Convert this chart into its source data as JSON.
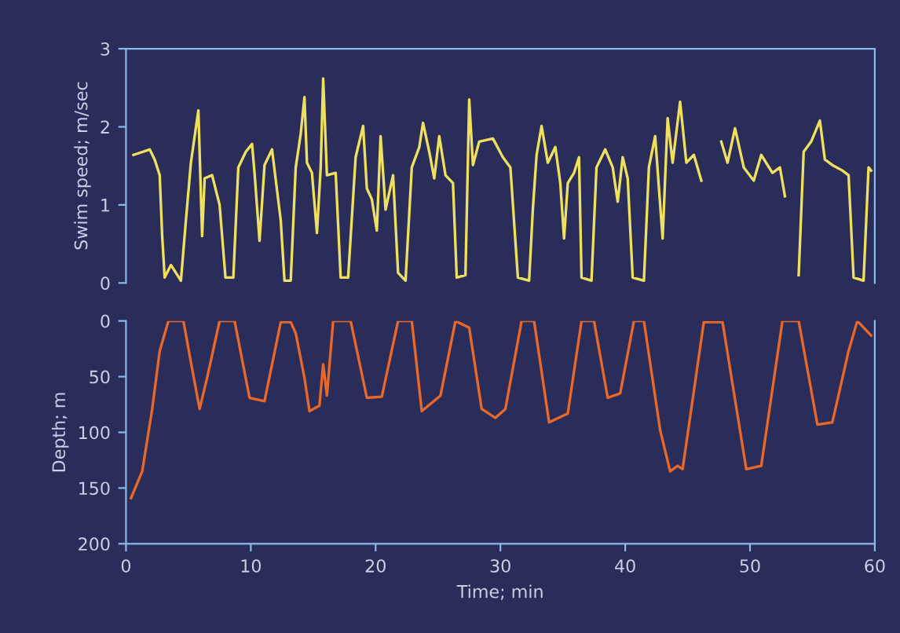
{
  "chart_data": [
    {
      "type": "line",
      "ylabel": "Swim speed; m/sec",
      "color": "#f0e060",
      "xlim": [
        0,
        60
      ],
      "ylim": [
        0,
        3
      ],
      "yticks": [
        0,
        1,
        2,
        3
      ],
      "tick_labels": "y",
      "x": [
        0.6,
        1.9,
        2.3,
        2.7,
        2.9,
        3.1,
        3.6,
        4.4,
        4.8,
        5.2,
        5.8,
        6.1,
        6.3,
        6.9,
        7.5,
        7.97,
        8.6,
        9.0,
        9.6,
        10.1,
        10.3,
        10.7,
        11.1,
        11.7,
        12.4,
        12.7,
        13.2,
        13.6,
        14.0,
        14.3,
        14.5,
        14.9,
        15.3,
        15.6,
        15.8,
        16.1,
        16.8,
        17.2,
        17.8,
        18.4,
        19.0,
        19.3,
        19.7,
        20.1,
        20.4,
        20.8,
        21.4,
        21.8,
        22.4,
        22.9,
        23.5,
        23.8,
        24.3,
        24.7,
        25.1,
        25.6,
        26.2,
        26.5,
        27.2,
        27.5,
        27.8,
        28.3,
        29.4,
        30.2,
        30.8,
        31.4,
        32.3,
        32.6,
        32.9,
        33.3,
        33.8,
        34.4,
        34.8,
        35.1,
        35.4,
        35.9,
        36.3,
        36.5,
        37.3,
        37.7,
        38.4,
        39.0,
        39.4,
        39.8,
        40.2,
        40.6,
        41.5,
        41.9,
        42.4,
        43.0,
        43.4,
        43.8,
        44.4,
        44.9,
        45.5,
        46.1,
        46.8,
        47.7,
        48.2,
        48.8,
        49.5,
        50.3,
        50.9,
        51.8,
        52.4,
        52.8,
        53.3,
        53.9,
        54.3,
        54.9,
        55.6,
        56.0,
        56.6,
        57.4,
        57.9,
        58.3,
        59.1,
        59.5,
        59.7
      ],
      "values": [
        1.64,
        1.71,
        1.58,
        1.38,
        0.6,
        0.07,
        0.23,
        0.03,
        0.8,
        1.54,
        2.21,
        0.6,
        1.34,
        1.38,
        1.0,
        0.07,
        0.07,
        1.48,
        1.68,
        1.78,
        1.41,
        0.54,
        1.51,
        1.71,
        0.8,
        0.03,
        0.03,
        1.48,
        1.91,
        2.38,
        1.54,
        1.41,
        0.64,
        1.48,
        2.62,
        1.38,
        1.41,
        0.07,
        0.07,
        1.61,
        2.01,
        1.21,
        1.07,
        0.67,
        1.88,
        0.94,
        1.38,
        0.13,
        0.03,
        1.48,
        1.74,
        2.05,
        1.68,
        1.34,
        1.88,
        1.38,
        1.28,
        0.07,
        0.1,
        2.35,
        1.51,
        1.81,
        1.85,
        1.61,
        1.48,
        0.07,
        0.03,
        0.94,
        1.64,
        2.01,
        1.54,
        1.74,
        1.28,
        0.57,
        1.28,
        1.41,
        1.61,
        0.07,
        0.03,
        1.48,
        1.71,
        1.48,
        1.04,
        1.61,
        1.34,
        0.07,
        0.03,
        1.48,
        1.88,
        0.57,
        2.11,
        1.54,
        2.32,
        1.54,
        1.64,
        1.31,
        null,
        1.81,
        1.54,
        1.98,
        1.48,
        1.31,
        1.64,
        1.41,
        1.48,
        1.11,
        null,
        0.1,
        1.68,
        1.81,
        2.08,
        1.58,
        1.51,
        1.44,
        1.38,
        0.07,
        0.03,
        1.48,
        1.44
      ]
    },
    {
      "type": "line",
      "xlabel": "Time; min",
      "ylabel": "Depth; m",
      "color": "#e8682a",
      "xlim": [
        0,
        60
      ],
      "xticks": [
        0,
        10,
        20,
        30,
        40,
        50,
        60
      ],
      "ylim": [
        200,
        0
      ],
      "yticks": [
        0,
        50,
        100,
        150,
        200
      ],
      "x": [
        0.4,
        1.3,
        2.1,
        2.7,
        3.4,
        4.6,
        5.2,
        5.9,
        6.5,
        7.5,
        8.7,
        9.9,
        11.1,
        12.4,
        13.2,
        13.6,
        14.3,
        14.7,
        15.5,
        15.8,
        16.1,
        16.6,
        18.0,
        19.3,
        20.5,
        21.8,
        22.9,
        23.7,
        25.2,
        26.4,
        27.5,
        28.5,
        29.6,
        30.4,
        31.7,
        32.7,
        33.9,
        35.4,
        36.5,
        37.5,
        38.6,
        39.6,
        40.7,
        41.5,
        42.8,
        43.6,
        44.2,
        44.6,
        46.3,
        47.8,
        49.7,
        50.9,
        52.6,
        53.9,
        55.4,
        56.6,
        57.9,
        58.6,
        59.7
      ],
      "values": [
        159,
        135,
        79,
        27,
        0,
        0,
        37,
        79,
        51,
        0,
        0,
        69,
        72,
        1,
        1,
        11,
        51,
        81,
        76,
        39,
        67,
        0,
        0,
        69,
        68,
        0,
        0,
        81,
        67,
        0,
        6,
        79,
        87,
        79,
        0,
        0,
        91,
        83,
        0,
        0,
        69,
        65,
        0,
        0,
        98,
        135,
        130,
        133,
        1,
        1,
        133,
        130,
        0,
        0,
        93,
        91,
        27,
        0,
        13
      ]
    }
  ]
}
